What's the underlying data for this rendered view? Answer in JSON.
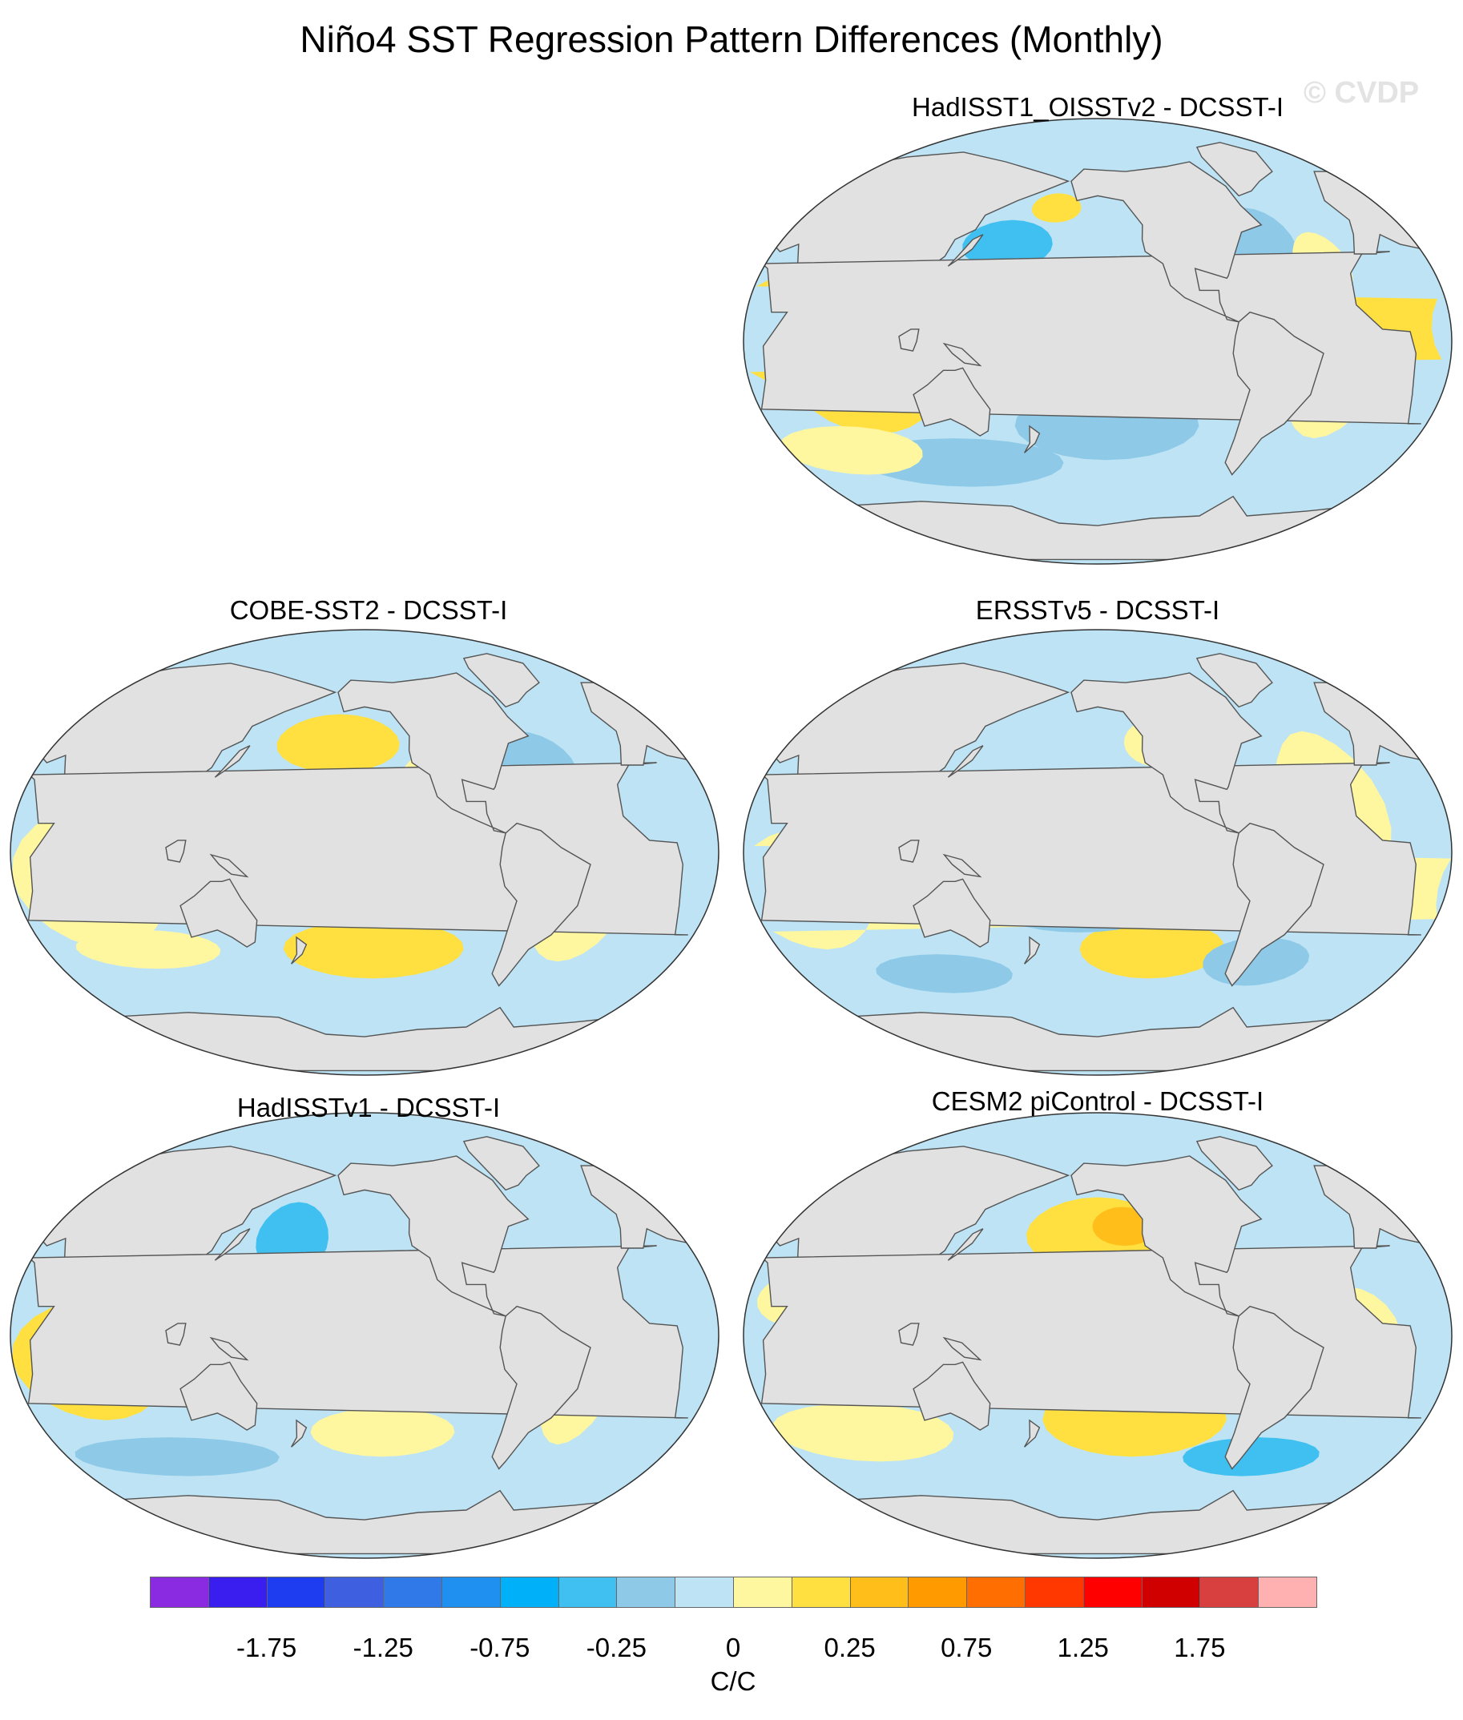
{
  "figure": {
    "title": "Niño4 SST Regression Pattern Differences (Monthly)",
    "watermark": "© CVDP"
  },
  "panels": [
    {
      "id": "hadisst1-oisstv2",
      "label": "HadISST1_OISSTv2 - DCSST-I"
    },
    {
      "id": "cobe-sst2",
      "label": "COBE-SST2 - DCSST-I"
    },
    {
      "id": "ersstv5",
      "label": "ERSSTv5 - DCSST-I"
    },
    {
      "id": "hadisstv1",
      "label": "HadISSTv1 - DCSST-I"
    },
    {
      "id": "cesm2-picontrol",
      "label": "CESM2 piControl - DCSST-I"
    }
  ],
  "colorbar": {
    "unit": "C/C",
    "colors": [
      "#8a2be2",
      "#3a1ef0",
      "#1e3cf0",
      "#3d5fe0",
      "#2f7ae8",
      "#2090f0",
      "#00b0f8",
      "#40c0f0",
      "#8ecae8",
      "#bde3f4",
      "#fff7a0",
      "#ffe040",
      "#ffbe1a",
      "#ff9a00",
      "#ff6e00",
      "#ff3800",
      "#ff0000",
      "#d00000",
      "#d84040",
      "#ffb0b0"
    ],
    "tick_labels": [
      "-1.75",
      "-1.25",
      "-0.75",
      "-0.25",
      "0",
      "0.25",
      "0.75",
      "1.25",
      "1.75"
    ]
  },
  "map_colors": {
    "ocean_background": "#bde3f4",
    "land": "#e1e1e1",
    "coastline": "#555555",
    "positive_small": "#fff7a0",
    "positive_medium": "#ffe040",
    "positive_large": "#ffbe1a",
    "negative_small": "#8ecae8",
    "negative_medium": "#40c0f0"
  }
}
